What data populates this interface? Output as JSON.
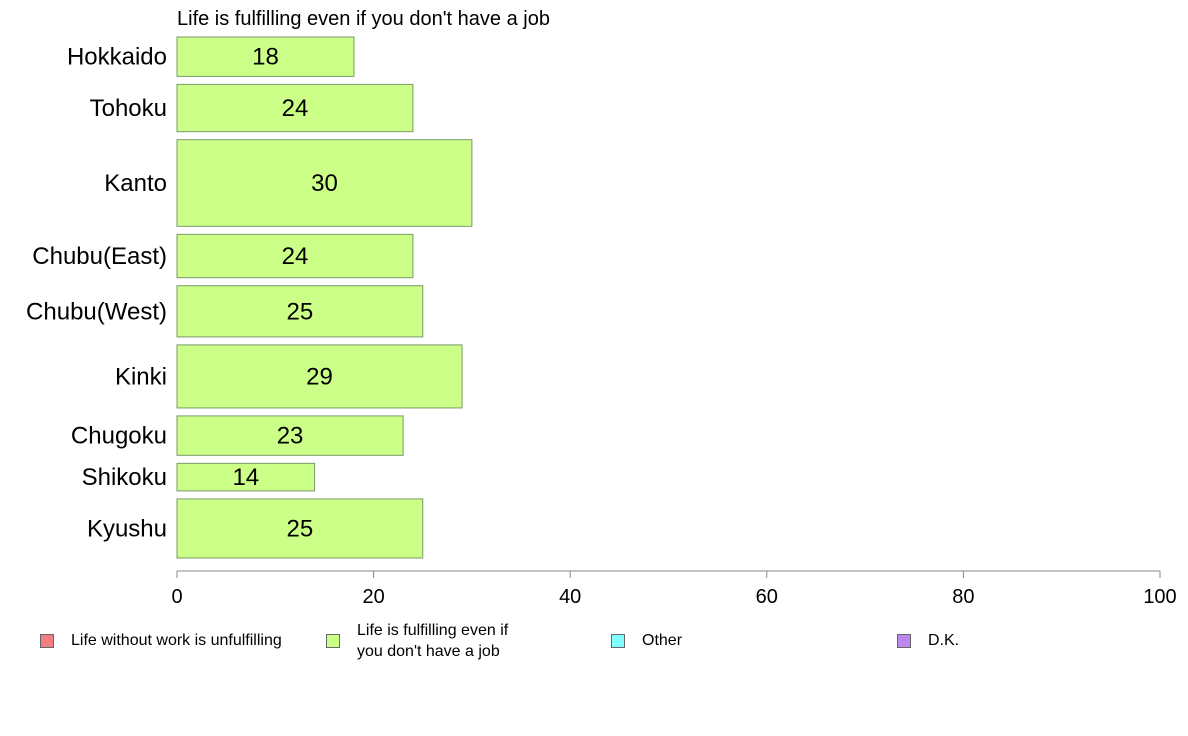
{
  "chart_data": {
    "type": "bar",
    "orientation": "horizontal",
    "title": "Life is fulfilling even if you don't have a job",
    "categories": [
      "Hokkaido",
      "Tohoku",
      "Kanto",
      "Chubu(East)",
      "Chubu(West)",
      "Kinki",
      "Chugoku",
      "Shikoku",
      "Kyushu"
    ],
    "series": [
      {
        "name": "Life is fulfilling even if you don't have a job",
        "values": [
          18,
          24,
          30,
          24,
          25,
          29,
          23,
          14,
          25
        ]
      }
    ],
    "bar_weights": [
      1.0,
      1.2,
      2.2,
      1.1,
      1.3,
      1.6,
      1.0,
      0.7,
      1.5
    ],
    "data_labels": [
      "18",
      "24",
      "30",
      "24",
      "25",
      "29",
      "23",
      "14",
      "25"
    ],
    "xlim": [
      0,
      100
    ],
    "xticks": [
      0,
      20,
      40,
      60,
      80,
      100
    ],
    "xlabel": "",
    "ylabel": "",
    "grid": false,
    "legend_position": "bottom"
  },
  "colors": {
    "bar_fill": "#ccff88",
    "bar_stroke": "#7a9a6a",
    "axis": "#888888"
  },
  "legend": [
    {
      "label": "Life without work is unfulfilling",
      "color": "#f08080"
    },
    {
      "label": "Life is fulfilling even if you don't have a job",
      "color": "#ccff88"
    },
    {
      "label": "Other",
      "color": "#80ffff"
    },
    {
      "label": "D.K.",
      "color": "#bb88ee"
    }
  ]
}
